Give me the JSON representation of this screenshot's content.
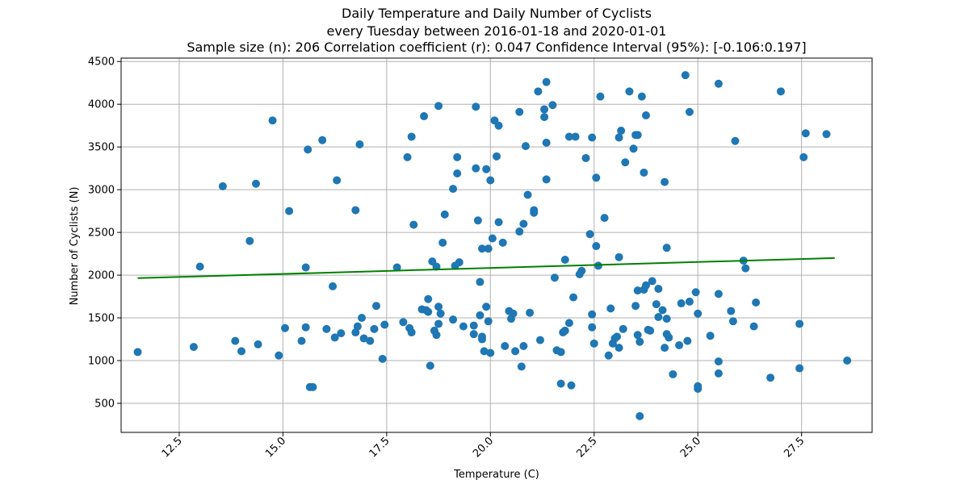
{
  "chart_data": {
    "type": "scatter",
    "title": [
      "Daily Temperature and Daily Number of Cyclists",
      "every Tuesday between 2016-01-18 and 2020-01-01",
      "Sample size (n): 206   Correlation coefficient (r): 0.047   Confidence Interval (95%): [-0.106:0.197]"
    ],
    "xlabel": "Temperature (C)",
    "ylabel": "Number of Cyclists (N)",
    "xlim": [
      11.1,
      29.2
    ],
    "ylim": [
      160,
      4540
    ],
    "xticks": [
      12.5,
      15.0,
      17.5,
      20.0,
      22.5,
      25.0,
      27.5
    ],
    "xtick_labels": [
      "12.5",
      "15.0",
      "17.5",
      "20.0",
      "22.5",
      "25.0",
      "27.5"
    ],
    "yticks": [
      500,
      1000,
      1500,
      2000,
      2500,
      3000,
      3500,
      4000,
      4500
    ],
    "ytick_labels": [
      "500",
      "1000",
      "1500",
      "2000",
      "2500",
      "3000",
      "3500",
      "4000",
      "4500"
    ],
    "grid": true,
    "point_color": "#1f77b4",
    "line_color": "#008000",
    "trendline": {
      "x": [
        11.5,
        28.3
      ],
      "y": [
        1965,
        2200
      ]
    },
    "points": [
      [
        11.5,
        1100
      ],
      [
        12.85,
        1160
      ],
      [
        13.0,
        2100
      ],
      [
        13.55,
        3040
      ],
      [
        13.85,
        1230
      ],
      [
        14.0,
        1110
      ],
      [
        14.2,
        2400
      ],
      [
        14.35,
        3070
      ],
      [
        14.4,
        1190
      ],
      [
        14.75,
        3810
      ],
      [
        14.9,
        1060
      ],
      [
        15.05,
        1380
      ],
      [
        15.15,
        2750
      ],
      [
        15.45,
        1230
      ],
      [
        15.55,
        2090
      ],
      [
        15.55,
        1390
      ],
      [
        15.6,
        3470
      ],
      [
        15.65,
        690
      ],
      [
        15.72,
        690
      ],
      [
        15.95,
        3580
      ],
      [
        16.05,
        1370
      ],
      [
        16.2,
        1870
      ],
      [
        16.25,
        1270
      ],
      [
        16.3,
        3110
      ],
      [
        16.4,
        1320
      ],
      [
        16.75,
        1330
      ],
      [
        16.75,
        2760
      ],
      [
        16.8,
        1400
      ],
      [
        16.85,
        3530
      ],
      [
        16.9,
        1500
      ],
      [
        16.95,
        1260
      ],
      [
        17.1,
        1230
      ],
      [
        17.25,
        1640
      ],
      [
        17.2,
        1370
      ],
      [
        17.4,
        1020
      ],
      [
        17.45,
        1420
      ],
      [
        17.75,
        2090
      ],
      [
        17.9,
        1450
      ],
      [
        18.0,
        3380
      ],
      [
        18.15,
        2590
      ],
      [
        18.1,
        3620
      ],
      [
        18.05,
        1380
      ],
      [
        18.1,
        1330
      ],
      [
        18.35,
        1600
      ],
      [
        18.4,
        3860
      ],
      [
        18.5,
        1720
      ],
      [
        18.55,
        940
      ],
      [
        18.5,
        1570
      ],
      [
        18.6,
        2160
      ],
      [
        18.65,
        1350
      ],
      [
        18.7,
        2100
      ],
      [
        18.7,
        1300
      ],
      [
        18.75,
        1430
      ],
      [
        18.75,
        1630
      ],
      [
        18.75,
        3980
      ],
      [
        18.8,
        1550
      ],
      [
        18.85,
        2380
      ],
      [
        18.9,
        2710
      ],
      [
        19.1,
        1480
      ],
      [
        19.1,
        3010
      ],
      [
        19.15,
        2110
      ],
      [
        19.2,
        3380
      ],
      [
        19.2,
        3190
      ],
      [
        19.25,
        2150
      ],
      [
        19.35,
        1400
      ],
      [
        19.6,
        1410
      ],
      [
        19.65,
        3250
      ],
      [
        19.6,
        1310
      ],
      [
        19.65,
        3970
      ],
      [
        19.7,
        2640
      ],
      [
        19.75,
        1920
      ],
      [
        19.8,
        1280
      ],
      [
        19.75,
        1530
      ],
      [
        19.8,
        1250
      ],
      [
        19.85,
        1110
      ],
      [
        19.9,
        1630
      ],
      [
        19.9,
        3240
      ],
      [
        19.95,
        1460
      ],
      [
        19.95,
        2310
      ],
      [
        20.0,
        1090
      ],
      [
        20.0,
        3110
      ],
      [
        20.05,
        2430
      ],
      [
        20.1,
        3810
      ],
      [
        20.15,
        3390
      ],
      [
        20.2,
        2620
      ],
      [
        20.2,
        3750
      ],
      [
        20.3,
        2380
      ],
      [
        20.35,
        1170
      ],
      [
        20.45,
        1580
      ],
      [
        20.5,
        1490
      ],
      [
        20.55,
        1550
      ],
      [
        20.6,
        1110
      ],
      [
        20.7,
        2510
      ],
      [
        20.75,
        930
      ],
      [
        20.7,
        3910
      ],
      [
        20.8,
        1170
      ],
      [
        20.8,
        2600
      ],
      [
        20.85,
        3510
      ],
      [
        20.9,
        2940
      ],
      [
        20.95,
        1560
      ],
      [
        21.05,
        2730
      ],
      [
        21.05,
        2760
      ],
      [
        21.15,
        4150
      ],
      [
        21.2,
        1240
      ],
      [
        21.3,
        3940
      ],
      [
        21.3,
        3850
      ],
      [
        21.35,
        3550
      ],
      [
        21.35,
        3120
      ],
      [
        21.35,
        4260
      ],
      [
        21.5,
        3990
      ],
      [
        21.55,
        1970
      ],
      [
        21.6,
        1120
      ],
      [
        21.7,
        730
      ],
      [
        21.7,
        1100
      ],
      [
        21.75,
        1330
      ],
      [
        21.8,
        1350
      ],
      [
        21.8,
        2180
      ],
      [
        21.9,
        1440
      ],
      [
        21.95,
        710
      ],
      [
        22.0,
        1740
      ],
      [
        22.05,
        3620
      ],
      [
        22.15,
        2010
      ],
      [
        22.2,
        2050
      ],
      [
        22.3,
        3370
      ],
      [
        22.4,
        2480
      ],
      [
        22.45,
        3610
      ],
      [
        22.45,
        1540
      ],
      [
        22.45,
        1390
      ],
      [
        22.5,
        1200
      ],
      [
        22.55,
        3140
      ],
      [
        22.55,
        2340
      ],
      [
        22.6,
        2110
      ],
      [
        22.65,
        4090
      ],
      [
        22.75,
        2670
      ],
      [
        22.85,
        1060
      ],
      [
        22.9,
        1610
      ],
      [
        22.95,
        1200
      ],
      [
        23.0,
        1260
      ],
      [
        23.05,
        1280
      ],
      [
        23.1,
        3610
      ],
      [
        23.15,
        3690
      ],
      [
        23.1,
        2210
      ],
      [
        23.1,
        1150
      ],
      [
        23.2,
        1370
      ],
      [
        23.25,
        3320
      ],
      [
        23.35,
        4150
      ],
      [
        23.45,
        3480
      ],
      [
        23.5,
        1640
      ],
      [
        23.5,
        3640
      ],
      [
        23.55,
        1300
      ],
      [
        23.55,
        1820
      ],
      [
        23.6,
        350
      ],
      [
        23.6,
        1220
      ],
      [
        23.65,
        4090
      ],
      [
        23.7,
        1830
      ],
      [
        23.7,
        3200
      ],
      [
        23.75,
        1880
      ],
      [
        23.75,
        3870
      ],
      [
        23.8,
        1360
      ],
      [
        23.85,
        1350
      ],
      [
        23.9,
        1930
      ],
      [
        24.0,
        1660
      ],
      [
        24.05,
        1510
      ],
      [
        24.05,
        1840
      ],
      [
        24.15,
        1590
      ],
      [
        24.2,
        3090
      ],
      [
        24.2,
        1150
      ],
      [
        24.25,
        2320
      ],
      [
        24.25,
        1490
      ],
      [
        24.25,
        1310
      ],
      [
        24.3,
        1270
      ],
      [
        24.4,
        840
      ],
      [
        24.55,
        1180
      ],
      [
        24.6,
        1670
      ],
      [
        24.7,
        4340
      ],
      [
        24.75,
        1230
      ],
      [
        24.8,
        3910
      ],
      [
        24.8,
        1690
      ],
      [
        24.95,
        1800
      ],
      [
        25.0,
        1550
      ],
      [
        25.0,
        670
      ],
      [
        25.0,
        700
      ],
      [
        25.3,
        1290
      ],
      [
        25.5,
        4240
      ],
      [
        25.5,
        850
      ],
      [
        25.5,
        990
      ],
      [
        25.5,
        1780
      ],
      [
        25.8,
        1580
      ],
      [
        25.85,
        1460
      ],
      [
        25.9,
        3570
      ],
      [
        26.1,
        2170
      ],
      [
        26.15,
        2080
      ],
      [
        26.35,
        1400
      ],
      [
        26.4,
        1680
      ],
      [
        26.75,
        800
      ],
      [
        27.0,
        4150
      ],
      [
        27.45,
        1430
      ],
      [
        27.45,
        910
      ],
      [
        27.55,
        3380
      ],
      [
        27.6,
        3660
      ],
      [
        28.1,
        3650
      ],
      [
        28.6,
        1000
      ],
      [
        23.55,
        3640
      ],
      [
        21.9,
        3620
      ],
      [
        18.45,
        1590
      ],
      [
        19.8,
        2310
      ]
    ]
  }
}
